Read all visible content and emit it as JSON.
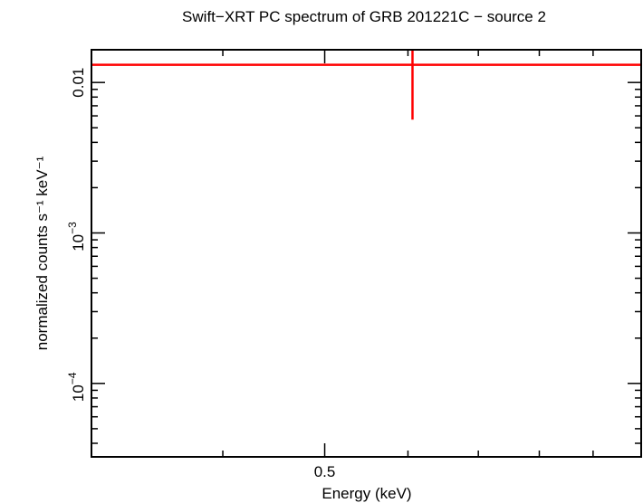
{
  "chart_data": {
    "type": "scatter",
    "title": "Swift−XRT PC spectrum of GRB 201221C − source 2",
    "xlabel": "Energy (keV)",
    "ylabel": "normalized counts s⁻¹ keV⁻¹",
    "x_scale": "log",
    "y_scale": "log",
    "xlim": [
      0.3,
      1.0
    ],
    "ylim": [
      3.25e-05,
      0.0165
    ],
    "x_ticks": [
      {
        "value": 0.5,
        "label": "0.5"
      }
    ],
    "y_ticks": [
      {
        "value": 0.01,
        "label": "0.01",
        "type": "plain"
      },
      {
        "value": 0.001,
        "base": "10",
        "exp": "−3",
        "type": "power"
      },
      {
        "value": 0.0001,
        "base": "10",
        "exp": "−4",
        "type": "power"
      }
    ],
    "grid": false,
    "series": [
      {
        "color": "#ff0000",
        "points": [
          {
            "x": 0.606,
            "xerr": [
              0.3,
              1.0
            ],
            "y": 0.0131,
            "yerr": [
              0.00566,
              0.0165
            ]
          }
        ]
      }
    ]
  }
}
